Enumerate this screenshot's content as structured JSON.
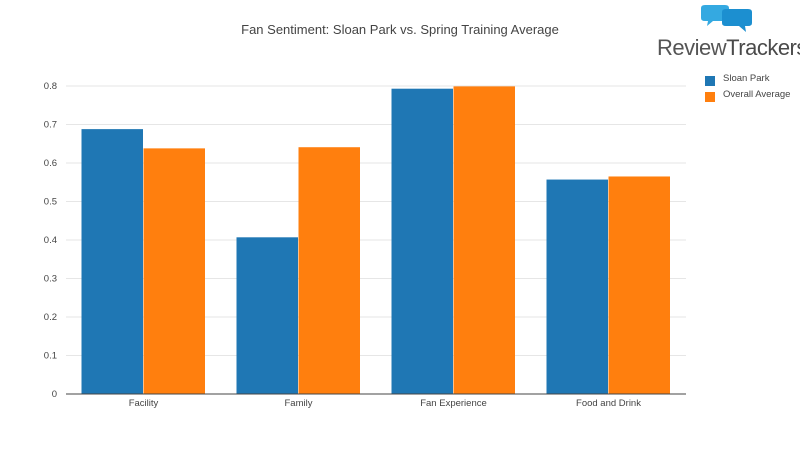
{
  "title": "Fan Sentiment: Sloan Park vs. Spring Training Average",
  "logo": {
    "text_part1": "Review",
    "text_part2": "Trackers",
    "icon": "speech-bubbles-icon"
  },
  "colors": {
    "Sloan Park": "#1f77b4",
    "Overall Average": "#ff7f0e",
    "grid": "#e6e6e6",
    "axis": "#444444"
  },
  "chart_data": {
    "type": "bar",
    "title": "Fan Sentiment: Sloan Park vs. Spring Training Average",
    "xlabel": "",
    "ylabel": "",
    "categories": [
      "Facility",
      "Family",
      "Fan Experience",
      "Food and Drink"
    ],
    "series": [
      {
        "name": "Sloan Park",
        "values": [
          0.688,
          0.407,
          0.793,
          0.557
        ]
      },
      {
        "name": "Overall Average",
        "values": [
          0.638,
          0.641,
          0.799,
          0.565
        ]
      }
    ],
    "ylim": [
      0,
      0.8
    ],
    "yticks": [
      "0",
      "0.1",
      "0.2",
      "0.3",
      "0.4",
      "0.5",
      "0.6",
      "0.7",
      "0.8"
    ],
    "grid": true,
    "legend": "top-right"
  }
}
